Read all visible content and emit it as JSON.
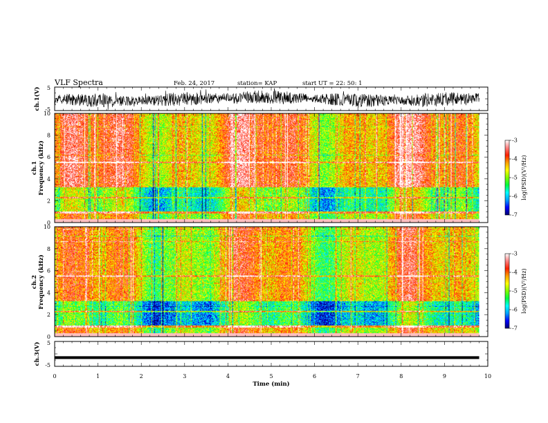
{
  "header": {
    "title": "VLF Spectra",
    "date": "Feb. 24, 2017",
    "station": "station= KAP",
    "start_time": "start UT =  22: 50: 1"
  },
  "colors": {
    "spectrum": [
      "#000070",
      "#0000ff",
      "#00a0ff",
      "#00ffff",
      "#00ff40",
      "#80ff00",
      "#ffff00",
      "#ffa000",
      "#ff2000",
      "#ff8080",
      "#ffffff"
    ]
  },
  "chart_data": [
    {
      "type": "line",
      "name": "waveform-ch1",
      "ylabel": "ch.1(V)",
      "ylim": [
        -5,
        5
      ],
      "yticks": [
        "5",
        "-5"
      ],
      "trace": "noisy waveform, envelope approx -3.5 to 3.5 V"
    },
    {
      "type": "heatmap",
      "name": "spectrogram-ch1",
      "ylabel_line1": "ch.1",
      "ylabel_line2": "Frequency (kHz)",
      "ylim": [
        0,
        10
      ],
      "yticks": [
        "0",
        "2",
        "4",
        "6",
        "8",
        "10"
      ],
      "colorbar": {
        "label": "log(PSD)(V²/Hz)",
        "range": [
          -7,
          -3
        ],
        "ticks": [
          "-3",
          "-4",
          "-5",
          "-6",
          "-7"
        ]
      }
    },
    {
      "type": "heatmap",
      "name": "spectrogram-ch2",
      "ylabel_line1": "ch.2",
      "ylabel_line2": "Frequency (kHz)",
      "ylim": [
        0,
        10
      ],
      "yticks": [
        "0",
        "2",
        "4",
        "6",
        "8",
        "10"
      ],
      "colorbar": {
        "label": "log(PSD)(V²/Hz)",
        "range": [
          -7,
          -3
        ],
        "ticks": [
          "-3",
          "-4",
          "-5",
          "-6",
          "-7"
        ]
      }
    },
    {
      "type": "line",
      "name": "waveform-ch3",
      "ylabel": "ch.3(V)",
      "ylim": [
        -5,
        5
      ],
      "yticks": [
        "5",
        "-5"
      ],
      "trace": "flat band near -1.5 V"
    }
  ],
  "xaxis": {
    "label": "Time (min)",
    "xlim": [
      0,
      10
    ],
    "ticks": [
      "0",
      "1",
      "2",
      "3",
      "4",
      "5",
      "6",
      "7",
      "8",
      "9",
      "10"
    ],
    "data_end": 9.8
  }
}
